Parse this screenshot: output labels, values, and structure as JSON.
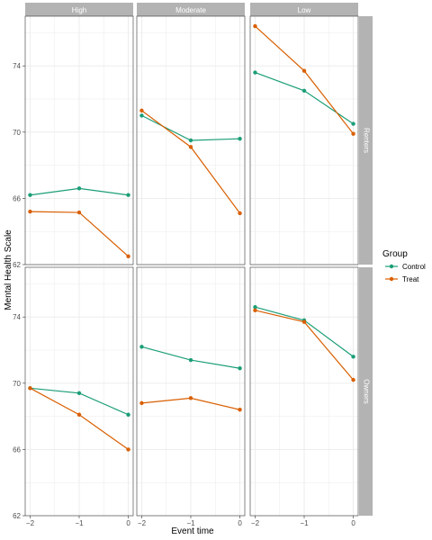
{
  "chart_data": {
    "type": "line",
    "xlabel": "Event time",
    "ylabel": "Mental Health Scale",
    "x": [
      -2,
      -1,
      0
    ],
    "x_tick_labels": [
      "−2",
      "−1",
      "0"
    ],
    "y_ticks": [
      62,
      66,
      70,
      74
    ],
    "ylim": [
      62,
      77
    ],
    "grid": true,
    "legend_title": "Group",
    "legend_position": "right",
    "columns": [
      "High",
      "Moderate",
      "Low"
    ],
    "rows": [
      "Renters",
      "Owners"
    ],
    "series_colors": {
      "Control": "#1b9e77",
      "Treat": "#d95f02"
    },
    "panels": [
      {
        "row": "Renters",
        "column": "High",
        "series": [
          {
            "name": "Control",
            "values": [
              66.2,
              66.6,
              66.2
            ]
          },
          {
            "name": "Treat",
            "values": [
              65.2,
              65.15,
              62.5
            ]
          }
        ]
      },
      {
        "row": "Renters",
        "column": "Moderate",
        "series": [
          {
            "name": "Control",
            "values": [
              71.0,
              69.5,
              69.6
            ]
          },
          {
            "name": "Treat",
            "values": [
              71.3,
              69.1,
              65.1
            ]
          }
        ]
      },
      {
        "row": "Renters",
        "column": "Low",
        "series": [
          {
            "name": "Control",
            "values": [
              73.6,
              72.5,
              70.5
            ]
          },
          {
            "name": "Treat",
            "values": [
              76.4,
              73.7,
              69.9
            ]
          }
        ]
      },
      {
        "row": "Owners",
        "column": "High",
        "series": [
          {
            "name": "Control",
            "values": [
              69.7,
              69.4,
              68.1
            ]
          },
          {
            "name": "Treat",
            "values": [
              69.7,
              68.1,
              66.0
            ]
          }
        ]
      },
      {
        "row": "Owners",
        "column": "Moderate",
        "series": [
          {
            "name": "Control",
            "values": [
              72.2,
              71.4,
              70.9
            ]
          },
          {
            "name": "Treat",
            "values": [
              68.8,
              69.1,
              68.4
            ]
          }
        ]
      },
      {
        "row": "Owners",
        "column": "Low",
        "series": [
          {
            "name": "Control",
            "values": [
              74.6,
              73.8,
              71.6
            ]
          },
          {
            "name": "Treat",
            "values": [
              74.4,
              73.7,
              70.2
            ]
          }
        ]
      }
    ]
  }
}
